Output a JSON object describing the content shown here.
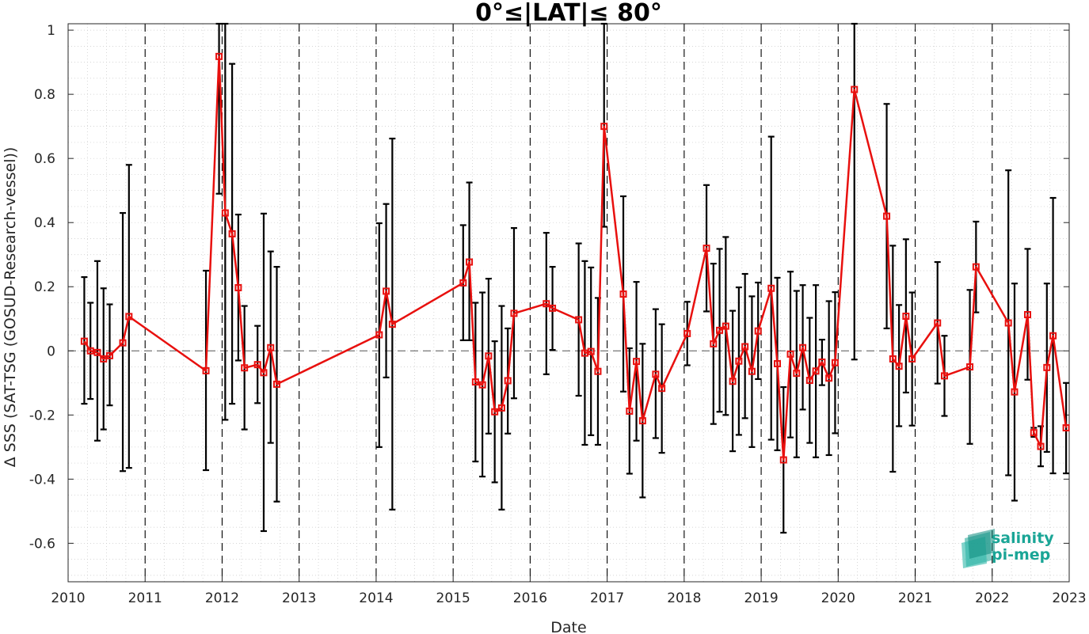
{
  "chart_data": {
    "type": "line",
    "title": "0°≤|LAT|≤ 80°",
    "xlabel": "Date",
    "ylabel": "Δ SSS (SAT-TSG (GOSUD-Research-vessel))",
    "xlim": [
      2010,
      2023
    ],
    "ylim": [
      -0.72,
      1.02
    ],
    "xticks": [
      2010,
      2011,
      2012,
      2013,
      2014,
      2015,
      2016,
      2017,
      2018,
      2019,
      2020,
      2021,
      2022,
      2023
    ],
    "xtick_labels": [
      "2010",
      "2011",
      "2012",
      "2013",
      "2014",
      "2015",
      "2016",
      "2017",
      "2018",
      "2019",
      "2020",
      "2021",
      "2022",
      "2023"
    ],
    "yticks": [
      -0.6,
      -0.4,
      -0.2,
      0,
      0.2,
      0.4,
      0.6,
      0.8,
      1
    ],
    "ytick_labels": [
      "-0.6",
      "-0.4",
      "-0.2",
      "0",
      "0.2",
      "0.4",
      "0.6",
      "0.8",
      "1"
    ],
    "year_divider_lines": [
      2011,
      2012,
      2013,
      2014,
      2015,
      2016,
      2017,
      2018,
      2019,
      2020,
      2021,
      2022
    ],
    "reference_line_y": 0,
    "grid": "minor-dotted",
    "colors": {
      "series": "#e8100e",
      "errorbars": "#000000",
      "divider": "#000000",
      "zero_line": "#555555"
    },
    "series": [
      {
        "points": [
          {
            "x": 2010.21,
            "y": 0.03,
            "lo": -0.165,
            "hi": 0.23
          },
          {
            "x": 2010.29,
            "y": 0.0,
            "lo": -0.15,
            "hi": 0.15
          },
          {
            "x": 2010.38,
            "y": -0.005,
            "lo": -0.28,
            "hi": 0.28
          },
          {
            "x": 2010.46,
            "y": -0.025,
            "lo": -0.245,
            "hi": 0.195
          },
          {
            "x": 2010.54,
            "y": -0.015,
            "lo": -0.17,
            "hi": 0.145
          },
          {
            "x": 2010.71,
            "y": 0.025,
            "lo": -0.375,
            "hi": 0.43
          },
          {
            "x": 2010.79,
            "y": 0.107,
            "lo": -0.365,
            "hi": 0.58
          },
          {
            "x": 2011.79,
            "y": -0.062,
            "lo": -0.372,
            "hi": 0.25
          },
          {
            "x": 2011.96,
            "y": 0.918,
            "lo": 0.49,
            "hi": 1.02
          },
          {
            "x": 2012.04,
            "y": 0.43,
            "lo": -0.215,
            "hi": 1.02
          },
          {
            "x": 2012.13,
            "y": 0.365,
            "lo": -0.165,
            "hi": 0.895
          },
          {
            "x": 2012.21,
            "y": 0.197,
            "lo": -0.03,
            "hi": 0.425
          },
          {
            "x": 2012.29,
            "y": -0.053,
            "lo": -0.245,
            "hi": 0.14
          },
          {
            "x": 2012.46,
            "y": -0.043,
            "lo": -0.163,
            "hi": 0.078
          },
          {
            "x": 2012.54,
            "y": -0.068,
            "lo": -0.562,
            "hi": 0.428
          },
          {
            "x": 2012.63,
            "y": 0.01,
            "lo": -0.287,
            "hi": 0.31
          },
          {
            "x": 2012.71,
            "y": -0.104,
            "lo": -0.47,
            "hi": 0.262
          },
          {
            "x": 2014.04,
            "y": 0.05,
            "lo": -0.3,
            "hi": 0.398
          },
          {
            "x": 2014.13,
            "y": 0.186,
            "lo": -0.083,
            "hi": 0.458
          },
          {
            "x": 2014.21,
            "y": 0.083,
            "lo": -0.495,
            "hi": 0.662
          },
          {
            "x": 2015.13,
            "y": 0.212,
            "lo": 0.033,
            "hi": 0.392
          },
          {
            "x": 2015.21,
            "y": 0.277,
            "lo": 0.033,
            "hi": 0.525
          },
          {
            "x": 2015.29,
            "y": -0.097,
            "lo": -0.345,
            "hi": 0.15
          },
          {
            "x": 2015.38,
            "y": -0.106,
            "lo": -0.392,
            "hi": 0.182
          },
          {
            "x": 2015.46,
            "y": -0.016,
            "lo": -0.258,
            "hi": 0.225
          },
          {
            "x": 2015.54,
            "y": -0.19,
            "lo": -0.41,
            "hi": 0.03
          },
          {
            "x": 2015.63,
            "y": -0.178,
            "lo": -0.495,
            "hi": 0.14
          },
          {
            "x": 2015.71,
            "y": -0.093,
            "lo": -0.258,
            "hi": 0.07
          },
          {
            "x": 2015.79,
            "y": 0.117,
            "lo": -0.148,
            "hi": 0.383
          },
          {
            "x": 2016.21,
            "y": 0.147,
            "lo": -0.073,
            "hi": 0.368
          },
          {
            "x": 2016.29,
            "y": 0.133,
            "lo": 0.003,
            "hi": 0.262
          },
          {
            "x": 2016.63,
            "y": 0.097,
            "lo": -0.14,
            "hi": 0.335
          },
          {
            "x": 2016.71,
            "y": -0.007,
            "lo": -0.293,
            "hi": 0.28
          },
          {
            "x": 2016.79,
            "y": -0.002,
            "lo": -0.263,
            "hi": 0.26
          },
          {
            "x": 2016.88,
            "y": -0.064,
            "lo": -0.293,
            "hi": 0.165
          },
          {
            "x": 2016.96,
            "y": 0.7,
            "lo": 0.387,
            "hi": 1.02
          },
          {
            "x": 2017.21,
            "y": 0.177,
            "lo": -0.127,
            "hi": 0.482
          },
          {
            "x": 2017.29,
            "y": -0.188,
            "lo": -0.383,
            "hi": 0.008
          },
          {
            "x": 2017.38,
            "y": -0.033,
            "lo": -0.28,
            "hi": 0.215
          },
          {
            "x": 2017.46,
            "y": -0.218,
            "lo": -0.457,
            "hi": 0.022
          },
          {
            "x": 2017.63,
            "y": -0.073,
            "lo": -0.272,
            "hi": 0.13
          },
          {
            "x": 2017.71,
            "y": -0.117,
            "lo": -0.318,
            "hi": 0.083
          },
          {
            "x": 2018.04,
            "y": 0.054,
            "lo": -0.045,
            "hi": 0.153
          },
          {
            "x": 2018.29,
            "y": 0.32,
            "lo": 0.123,
            "hi": 0.517
          },
          {
            "x": 2018.38,
            "y": 0.022,
            "lo": -0.228,
            "hi": 0.272
          },
          {
            "x": 2018.46,
            "y": 0.064,
            "lo": -0.19,
            "hi": 0.318
          },
          {
            "x": 2018.54,
            "y": 0.077,
            "lo": -0.2,
            "hi": 0.355
          },
          {
            "x": 2018.63,
            "y": -0.095,
            "lo": -0.313,
            "hi": 0.125
          },
          {
            "x": 2018.71,
            "y": -0.032,
            "lo": -0.262,
            "hi": 0.198
          },
          {
            "x": 2018.79,
            "y": 0.013,
            "lo": -0.21,
            "hi": 0.24
          },
          {
            "x": 2018.88,
            "y": -0.064,
            "lo": -0.3,
            "hi": 0.17
          },
          {
            "x": 2018.96,
            "y": 0.062,
            "lo": -0.088,
            "hi": 0.213
          },
          {
            "x": 2019.13,
            "y": 0.195,
            "lo": -0.277,
            "hi": 0.668
          },
          {
            "x": 2019.21,
            "y": -0.04,
            "lo": -0.31,
            "hi": 0.228
          },
          {
            "x": 2019.29,
            "y": -0.34,
            "lo": -0.567,
            "hi": -0.113
          },
          {
            "x": 2019.38,
            "y": -0.01,
            "lo": -0.27,
            "hi": 0.247
          },
          {
            "x": 2019.46,
            "y": -0.07,
            "lo": -0.332,
            "hi": 0.187
          },
          {
            "x": 2019.54,
            "y": 0.01,
            "lo": -0.183,
            "hi": 0.205
          },
          {
            "x": 2019.63,
            "y": -0.092,
            "lo": -0.287,
            "hi": 0.103
          },
          {
            "x": 2019.71,
            "y": -0.063,
            "lo": -0.332,
            "hi": 0.205
          },
          {
            "x": 2019.79,
            "y": -0.035,
            "lo": -0.107,
            "hi": 0.035
          },
          {
            "x": 2019.88,
            "y": -0.085,
            "lo": -0.325,
            "hi": 0.155
          },
          {
            "x": 2019.96,
            "y": -0.037,
            "lo": -0.257,
            "hi": 0.183
          },
          {
            "x": 2020.21,
            "y": 0.815,
            "lo": -0.027,
            "hi": 1.02
          },
          {
            "x": 2020.63,
            "y": 0.42,
            "lo": 0.07,
            "hi": 0.77
          },
          {
            "x": 2020.71,
            "y": -0.025,
            "lo": -0.377,
            "hi": 0.328
          },
          {
            "x": 2020.79,
            "y": -0.048,
            "lo": -0.235,
            "hi": 0.143
          },
          {
            "x": 2020.88,
            "y": 0.108,
            "lo": -0.13,
            "hi": 0.348
          },
          {
            "x": 2020.96,
            "y": -0.025,
            "lo": -0.233,
            "hi": 0.182
          },
          {
            "x": 2021.29,
            "y": 0.087,
            "lo": -0.102,
            "hi": 0.277
          },
          {
            "x": 2021.38,
            "y": -0.078,
            "lo": -0.203,
            "hi": 0.047
          },
          {
            "x": 2021.71,
            "y": -0.05,
            "lo": -0.29,
            "hi": 0.19
          },
          {
            "x": 2021.79,
            "y": 0.262,
            "lo": 0.12,
            "hi": 0.403
          },
          {
            "x": 2022.21,
            "y": 0.087,
            "lo": -0.388,
            "hi": 0.563
          },
          {
            "x": 2022.29,
            "y": -0.128,
            "lo": -0.467,
            "hi": 0.21
          },
          {
            "x": 2022.46,
            "y": 0.113,
            "lo": -0.09,
            "hi": 0.318
          },
          {
            "x": 2022.54,
            "y": -0.255,
            "lo": -0.268,
            "hi": -0.24
          },
          {
            "x": 2022.63,
            "y": -0.298,
            "lo": -0.36,
            "hi": -0.235
          },
          {
            "x": 2022.71,
            "y": -0.052,
            "lo": -0.315,
            "hi": 0.21
          },
          {
            "x": 2022.79,
            "y": 0.047,
            "lo": -0.382,
            "hi": 0.477
          },
          {
            "x": 2022.96,
            "y": -0.24,
            "lo": -0.382,
            "hi": -0.1
          }
        ]
      }
    ]
  },
  "logo": {
    "line1": "salinity",
    "line2": "pi-mep",
    "color": "#1aa596"
  }
}
